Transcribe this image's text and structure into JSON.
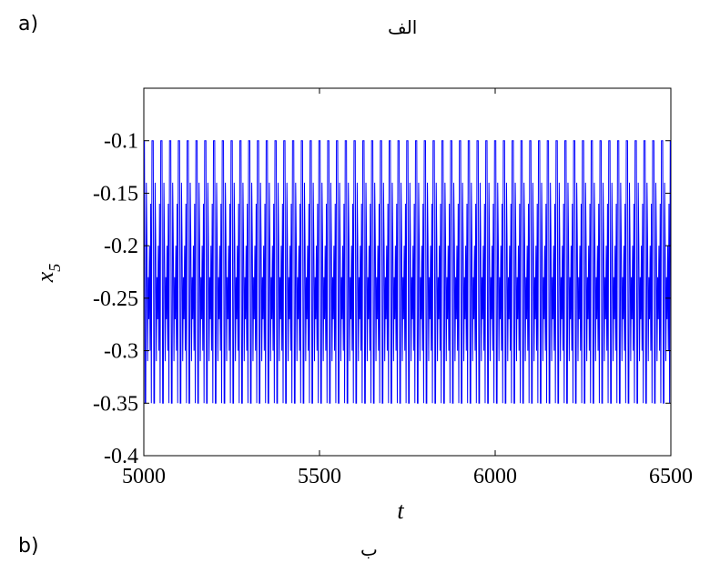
{
  "figure": {
    "panel_a_label": "a)",
    "panel_a_caption": "الف",
    "panel_b_label": "b)",
    "panel_b_caption": "ب"
  },
  "chart_data": {
    "type": "line",
    "title": "",
    "xlabel": "t",
    "ylabel_main": "x",
    "ylabel_sub": "5",
    "xlim": [
      5000,
      6500
    ],
    "ylim": [
      -0.4,
      -0.05
    ],
    "xticks": [
      5000,
      5500,
      6000,
      6500
    ],
    "xtick_labels": [
      "5000",
      "5500",
      "6000",
      "6500"
    ],
    "yticks": [
      -0.1,
      -0.15,
      -0.2,
      -0.25,
      -0.3,
      -0.35,
      -0.4
    ],
    "ytick_labels": [
      "-0.1",
      "-0.15",
      "-0.2",
      "-0.25",
      "-0.3",
      "-0.35",
      "-0.4"
    ],
    "grid": false,
    "series": [
      {
        "color": "#0000ff",
        "period": 25,
        "pattern": [
          -0.1,
          -0.1,
          -0.35,
          -0.35,
          -0.14,
          -0.2,
          -0.31,
          -0.23,
          -0.27,
          -0.2,
          -0.3,
          -0.16,
          -0.35,
          -0.1
        ]
      }
    ]
  }
}
